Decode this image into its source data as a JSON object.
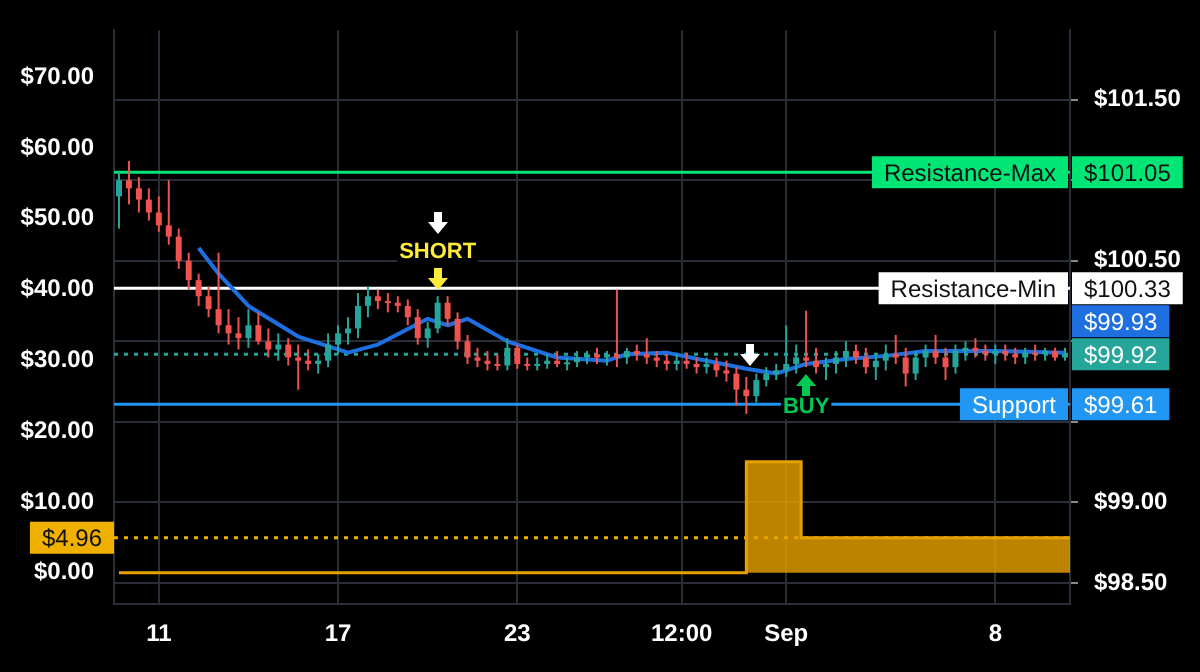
{
  "chart_data": {
    "type": "candlestick",
    "x": [
      "--08-09T16:00",
      "--08-10T00:00",
      "--08-10T08:00",
      "--08-10T16:00",
      "--08-11T00:00",
      "--08-11T08:00",
      "--08-11T16:00",
      "--08-12T00:00",
      "--08-12T08:00",
      "--08-12T16:00",
      "--08-13T00:00",
      "--08-13T08:00",
      "--08-13T16:00",
      "--08-14T00:00",
      "--08-14T08:00",
      "--08-14T16:00",
      "--08-15T00:00",
      "--08-15T08:00",
      "--08-15T16:00",
      "--08-16T00:00",
      "--08-16T08:00",
      "--08-16T16:00",
      "--08-17T00:00",
      "--08-17T08:00",
      "--08-17T16:00",
      "--08-18T00:00",
      "--08-18T08:00",
      "--08-18T16:00",
      "--08-19T00:00",
      "--08-19T08:00",
      "--08-19T16:00",
      "--08-20T00:00",
      "--08-20T08:00",
      "--08-20T16:00",
      "--08-21T00:00",
      "--08-21T08:00",
      "--08-21T16:00",
      "--08-22T00:00",
      "--08-22T08:00",
      "--08-22T16:00",
      "--08-23T00:00",
      "--08-23T08:00",
      "--08-23T16:00",
      "--08-24T00:00",
      "--08-24T08:00",
      "--08-24T16:00",
      "--08-25T00:00",
      "--08-25T08:00",
      "--08-25T16:00",
      "--08-26T00:00",
      "--08-26T08:00",
      "--08-26T16:00",
      "--08-27T00:00",
      "--08-27T08:00",
      "--08-27T16:00",
      "--08-28T00:00",
      "--08-28T08:00",
      "--08-28T16:00",
      "--08-29T00:00",
      "--08-29T08:00",
      "--08-29T16:00",
      "--08-30T00:00",
      "--08-30T08:00",
      "--08-30T16:00",
      "--08-31T00:00",
      "--08-31T08:00",
      "--08-31T16:00",
      "--09-01T00:00",
      "--09-01T08:00",
      "--09-01T16:00",
      "--09-02T00:00",
      "--09-02T08:00",
      "--09-02T16:00",
      "--09-03T00:00",
      "--09-03T08:00",
      "--09-03T16:00",
      "--09-04T00:00",
      "--09-04T08:00",
      "--09-04T16:00",
      "--09-05T00:00",
      "--09-05T08:00",
      "--09-05T16:00",
      "--09-06T00:00",
      "--09-06T08:00",
      "--09-06T16:00",
      "--09-07T00:00",
      "--09-07T08:00",
      "--09-07T16:00",
      "--09-08T00:00",
      "--09-08T08:00",
      "--09-08T16:00",
      "--09-09T00:00",
      "--09-09T08:00",
      "--09-09T16:00",
      "--09-10T00:00",
      "--09-10T08:00"
    ],
    "ohlc": [
      [
        100.9,
        101.05,
        100.7,
        101.0
      ],
      [
        101.0,
        101.12,
        100.85,
        100.95
      ],
      [
        100.95,
        101.02,
        100.8,
        100.88
      ],
      [
        100.88,
        100.95,
        100.75,
        100.8
      ],
      [
        100.8,
        100.9,
        100.68,
        100.72
      ],
      [
        100.72,
        101.0,
        100.6,
        100.65
      ],
      [
        100.65,
        100.7,
        100.45,
        100.5
      ],
      [
        100.5,
        100.55,
        100.32,
        100.38
      ],
      [
        100.38,
        100.42,
        100.22,
        100.28
      ],
      [
        100.28,
        100.34,
        100.15,
        100.2
      ],
      [
        100.2,
        100.55,
        100.05,
        100.1
      ],
      [
        100.1,
        100.2,
        99.98,
        100.05
      ],
      [
        100.05,
        100.15,
        99.95,
        100.02
      ],
      [
        100.02,
        100.2,
        99.96,
        100.1
      ],
      [
        100.1,
        100.18,
        99.98,
        100.0
      ],
      [
        100.0,
        100.08,
        99.9,
        99.95
      ],
      [
        99.95,
        100.05,
        99.88,
        99.98
      ],
      [
        99.98,
        100.02,
        99.85,
        99.9
      ],
      [
        99.9,
        99.98,
        99.7,
        99.88
      ],
      [
        99.88,
        99.95,
        99.82,
        99.86
      ],
      [
        99.86,
        99.92,
        99.8,
        99.88
      ],
      [
        99.88,
        100.05,
        99.84,
        99.98
      ],
      [
        99.98,
        100.1,
        99.92,
        100.05
      ],
      [
        100.05,
        100.15,
        99.98,
        100.08
      ],
      [
        100.08,
        100.3,
        100.02,
        100.22
      ],
      [
        100.22,
        100.34,
        100.15,
        100.28
      ],
      [
        100.28,
        100.32,
        100.2,
        100.25
      ],
      [
        100.25,
        100.3,
        100.18,
        100.24
      ],
      [
        100.24,
        100.28,
        100.18,
        100.22
      ],
      [
        100.22,
        100.26,
        100.1,
        100.15
      ],
      [
        100.15,
        100.2,
        99.98,
        100.02
      ],
      [
        100.02,
        100.12,
        99.96,
        100.08
      ],
      [
        100.08,
        100.28,
        100.05,
        100.24
      ],
      [
        100.24,
        100.28,
        100.1,
        100.14
      ],
      [
        100.14,
        100.18,
        99.95,
        100.0
      ],
      [
        100.0,
        100.04,
        99.86,
        99.9
      ],
      [
        99.9,
        99.96,
        99.84,
        99.88
      ],
      [
        99.88,
        99.94,
        99.82,
        99.86
      ],
      [
        99.86,
        99.92,
        99.82,
        99.85
      ],
      [
        99.85,
        100.02,
        99.82,
        99.96
      ],
      [
        99.96,
        99.98,
        99.83,
        99.86
      ],
      [
        99.86,
        99.9,
        99.82,
        99.85
      ],
      [
        99.85,
        99.9,
        99.82,
        99.86
      ],
      [
        99.86,
        99.92,
        99.83,
        99.88
      ],
      [
        99.88,
        99.94,
        99.84,
        99.86
      ],
      [
        99.86,
        99.9,
        99.82,
        99.87
      ],
      [
        99.87,
        99.94,
        99.84,
        99.9
      ],
      [
        99.9,
        99.94,
        99.86,
        99.92
      ],
      [
        99.92,
        99.96,
        99.86,
        99.9
      ],
      [
        99.9,
        99.94,
        99.85,
        99.92
      ],
      [
        99.92,
        100.32,
        99.84,
        99.9
      ],
      [
        99.9,
        99.96,
        99.86,
        99.94
      ],
      [
        99.94,
        99.98,
        99.88,
        99.92
      ],
      [
        99.92,
        100.02,
        99.86,
        99.9
      ],
      [
        99.9,
        99.94,
        99.84,
        99.88
      ],
      [
        99.88,
        99.92,
        99.82,
        99.86
      ],
      [
        99.86,
        99.92,
        99.82,
        99.88
      ],
      [
        99.88,
        99.93,
        99.83,
        99.86
      ],
      [
        99.86,
        99.9,
        99.8,
        99.84
      ],
      [
        99.84,
        99.9,
        99.8,
        99.86
      ],
      [
        99.86,
        99.9,
        99.78,
        99.82
      ],
      [
        99.82,
        99.88,
        99.75,
        99.8
      ],
      [
        99.8,
        99.84,
        99.6,
        99.7
      ],
      [
        99.7,
        99.78,
        99.55,
        99.66
      ],
      [
        99.66,
        99.8,
        99.62,
        99.76
      ],
      [
        99.76,
        99.84,
        99.72,
        99.8
      ],
      [
        99.8,
        99.86,
        99.76,
        99.82
      ],
      [
        99.82,
        100.1,
        99.78,
        99.86
      ],
      [
        99.86,
        99.98,
        99.8,
        99.9
      ],
      [
        99.9,
        100.19,
        99.84,
        99.88
      ],
      [
        99.88,
        99.96,
        99.8,
        99.84
      ],
      [
        99.84,
        99.9,
        99.76,
        99.86
      ],
      [
        99.86,
        99.94,
        99.8,
        99.9
      ],
      [
        99.9,
        100.0,
        99.84,
        99.94
      ],
      [
        99.94,
        99.98,
        99.86,
        99.9
      ],
      [
        99.9,
        99.96,
        99.8,
        99.84
      ],
      [
        99.84,
        99.92,
        99.76,
        99.88
      ],
      [
        99.88,
        99.98,
        99.82,
        99.92
      ],
      [
        99.92,
        100.04,
        99.86,
        99.9
      ],
      [
        99.9,
        99.96,
        99.72,
        99.8
      ],
      [
        99.8,
        99.94,
        99.76,
        99.9
      ],
      [
        99.9,
        99.98,
        99.84,
        99.94
      ],
      [
        99.94,
        100.04,
        99.86,
        99.9
      ],
      [
        99.9,
        99.96,
        99.76,
        99.84
      ],
      [
        99.84,
        99.98,
        99.8,
        99.94
      ],
      [
        99.94,
        100.0,
        99.88,
        99.96
      ],
      [
        99.96,
        100.02,
        99.9,
        99.94
      ],
      [
        99.94,
        99.98,
        99.88,
        99.92
      ],
      [
        99.92,
        99.98,
        99.86,
        99.94
      ],
      [
        99.94,
        99.98,
        99.88,
        99.92
      ],
      [
        99.92,
        99.96,
        99.86,
        99.9
      ],
      [
        99.9,
        99.96,
        99.86,
        99.93
      ],
      [
        99.93,
        99.98,
        99.88,
        99.92
      ],
      [
        99.92,
        99.96,
        99.88,
        99.94
      ],
      [
        99.94,
        99.96,
        99.88,
        99.9
      ],
      [
        99.9,
        99.96,
        99.88,
        99.92
      ]
    ],
    "xlim": [
      "--08-09T12:00",
      "--09-10T12:00"
    ],
    "xticks": [
      {
        "value": "--08-11",
        "label": "11"
      },
      {
        "value": "--08-17",
        "label": "17"
      },
      {
        "value": "--08-23",
        "label": "23"
      },
      {
        "value": "--08-28T12:00",
        "label": "12:00"
      },
      {
        "value": "--09-01",
        "label": "Sep"
      },
      {
        "value": "--09-08",
        "label": "8"
      }
    ],
    "ylim": [
      98.37,
      101.93
    ],
    "yticks": [
      {
        "value": 98.5,
        "label": "$98.50"
      },
      {
        "value": 99,
        "label": "$99.00"
      },
      {
        "value": 99.5,
        "label": null
      },
      {
        "value": 100,
        "label": null
      },
      {
        "value": 100.5,
        "label": "$100.50"
      },
      {
        "value": 101,
        "label": null
      },
      {
        "value": 101.5,
        "label": "$101.50"
      }
    ],
    "y2lim": [
      -4.4,
      76.6
    ],
    "y2ticks": [
      {
        "value": 0,
        "label": "$0.00"
      },
      {
        "value": 10,
        "label": "$10.00"
      },
      {
        "value": 20,
        "label": "$20.00"
      },
      {
        "value": 30,
        "label": "$30.00"
      },
      {
        "value": 40,
        "label": "$40.00"
      },
      {
        "value": 50,
        "label": "$50.00"
      },
      {
        "value": 60,
        "label": "$60.00"
      },
      {
        "value": 70,
        "label": "$70.00"
      }
    ],
    "series": [
      {
        "type": "line",
        "color": "#1e6fe0",
        "x": [
          "--08-12T08:00",
          "--08-13T00:00",
          "--08-14T00:00",
          "--08-15T16:00",
          "--08-17T08:00",
          "--08-18T08:00",
          "--08-20T00:00",
          "--08-20T16:00",
          "--08-21T08:00",
          "--08-22T16:00",
          "--08-24T08:00",
          "--08-26T00:00",
          "--08-26T16:00",
          "--08-28T00:00",
          "--08-29T08:00",
          "--08-30T16:00",
          "--08-31T16:00",
          "--09-01T16:00",
          "--09-03T00:00",
          "--09-04T08:00",
          "--09-05T16:00",
          "--09-08T00:00",
          "--09-10T08:00"
        ],
        "values": [
          100.58,
          100.42,
          100.22,
          100.03,
          99.93,
          99.98,
          100.14,
          100.1,
          100.14,
          100.0,
          99.9,
          99.88,
          99.92,
          99.93,
          99.88,
          99.83,
          99.8,
          99.86,
          99.89,
          99.91,
          99.94,
          99.94,
          99.93
        ]
      },
      {
        "type": "step",
        "axis": "y2",
        "color": "#e6a100",
        "x": [
          "--08-09T16:00",
          "--08-30T16:00",
          "--09-01T12:00",
          "--09-10T12:00"
        ],
        "values": [
          0,
          15.7,
          4.96,
          4.96
        ]
      }
    ],
    "ref_lines": [
      {
        "axis": "y",
        "value": 101.05,
        "label": "Resistance-Max",
        "color": "#00e676"
      },
      {
        "axis": "y",
        "value": 100.33,
        "label": "Resistance-Min",
        "color": "#ffffff"
      },
      {
        "axis": "y",
        "value": 99.61,
        "label": "Support",
        "color": "#2196f3"
      },
      {
        "axis": "y",
        "value": 99.92,
        "color": "#26a69a",
        "line_style": "dotted"
      },
      {
        "axis": "y2",
        "value": 4.96,
        "color": "#f0b000",
        "line_style": "dotted"
      }
    ],
    "annotations": [
      "$101.05",
      "$100.33",
      "$99.93",
      "$99.92",
      "$99.61",
      "$4.96",
      {
        "text": "SHORT",
        "x": "--08-20T08:00",
        "y": 100.28
      },
      {
        "text": "BUY",
        "x": "--09-01T16:00",
        "y": 99.84
      }
    ],
    "grid": true,
    "legend": false
  }
}
